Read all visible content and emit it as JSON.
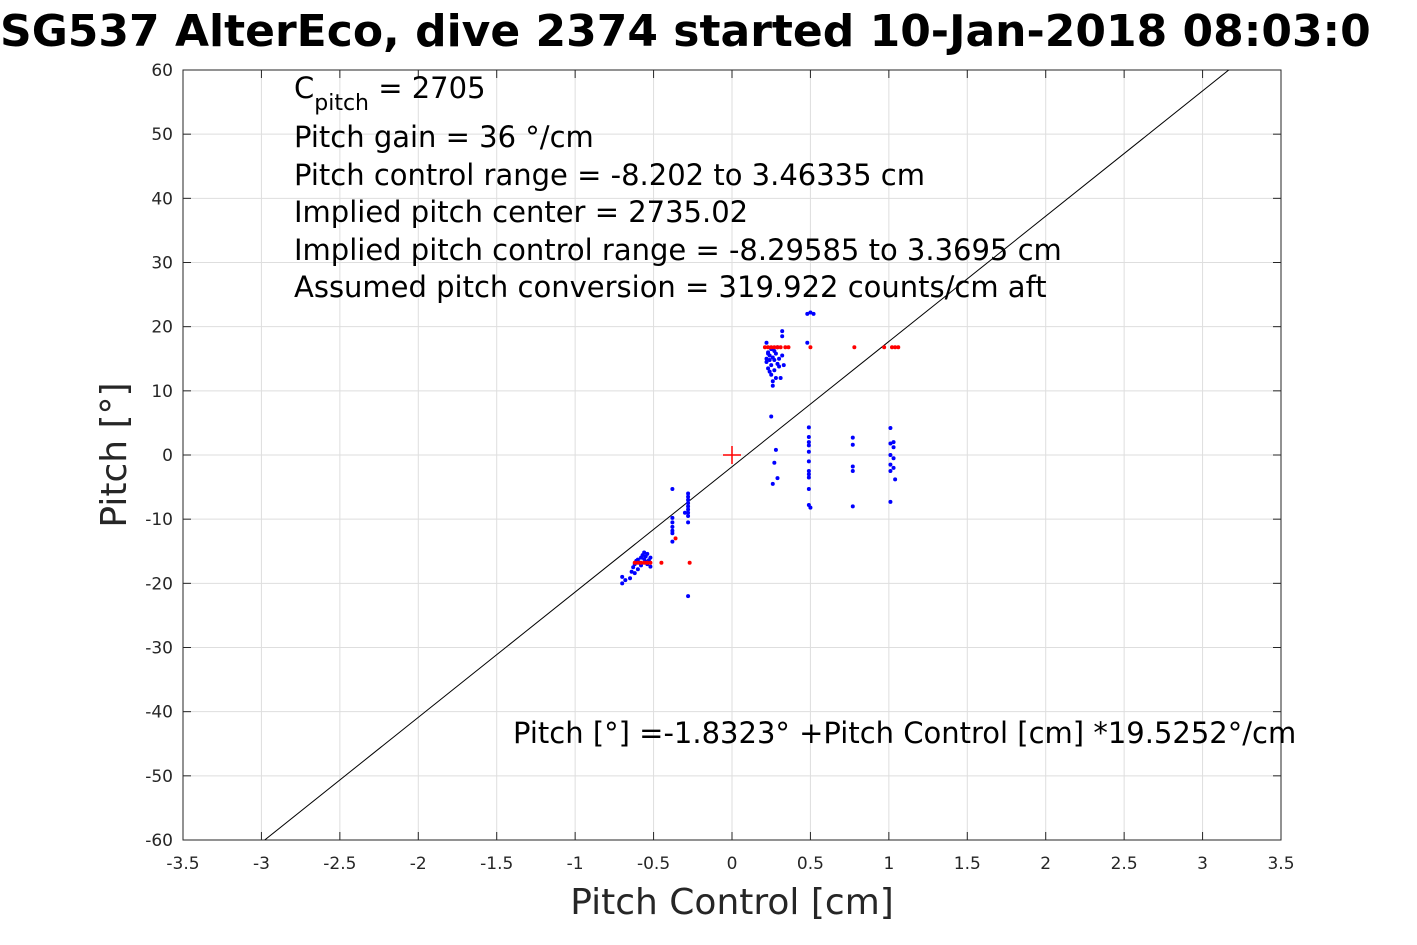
{
  "chart_data": {
    "type": "scatter",
    "title": "SG537 AlterEco, dive 2374 started 10-Jan-2018 08:03:0",
    "xlabel": "Pitch Control [cm]",
    "ylabel": "Pitch [°]",
    "xlim": [
      -3.5,
      3.5
    ],
    "ylim": [
      -60,
      60
    ],
    "x_ticks": [
      -3.5,
      -3,
      -2.5,
      -2,
      -1.5,
      -1,
      -0.5,
      0,
      0.5,
      1,
      1.5,
      2,
      2.5,
      3,
      3.5
    ],
    "x_tick_labels": [
      "-3.5",
      "-3",
      "-2.5",
      "-2",
      "-1.5",
      "-1",
      "-0.5",
      "0",
      "0.5",
      "1",
      "1.5",
      "2",
      "2.5",
      "3",
      "3.5"
    ],
    "y_ticks": [
      -60,
      -50,
      -40,
      -30,
      -20,
      -10,
      0,
      10,
      20,
      30,
      40,
      50,
      60
    ],
    "y_tick_labels": [
      "-60",
      "-50",
      "-40",
      "-30",
      "-20",
      "-10",
      "0",
      "10",
      "20",
      "30",
      "40",
      "50",
      "60"
    ],
    "grid": true,
    "colors": {
      "measured": "#0000ff",
      "commanded": "#ff0000",
      "fit": "#000000",
      "center": "#ff0000",
      "grid": "#dedede"
    },
    "annotations": {
      "c_pitch_prefix": "C",
      "c_pitch_sub": "pitch",
      "c_pitch_value": " = 2705",
      "line2": "Pitch gain = 36 °/cm",
      "line3": "Pitch control range = -8.202 to 3.46335 cm",
      "line4": "Implied pitch center = 2735.02",
      "line5": "Implied pitch control range = -8.29585 to 3.3695 cm",
      "line6": "Assumed pitch conversion = 319.922 counts/cm aft",
      "fit_equation": "Pitch [°] =-1.8323° +Pitch Control [cm] *19.5252°/cm"
    },
    "fit": {
      "intercept": -1.8323,
      "slope": 19.5252
    },
    "center_marker": {
      "x": 0,
      "y": 0
    },
    "series": [
      {
        "marker": "dot",
        "color": "#0000ff",
        "points": [
          [
            -0.7,
            -19.0
          ],
          [
            -0.7,
            -20.0
          ],
          [
            -0.68,
            -19.5
          ],
          [
            -0.65,
            -19.2
          ],
          [
            -0.64,
            -18.2
          ],
          [
            -0.63,
            -17.5
          ],
          [
            -0.62,
            -17.0
          ],
          [
            -0.61,
            -16.5
          ],
          [
            -0.6,
            -16.3
          ],
          [
            -0.59,
            -16.8
          ],
          [
            -0.58,
            -17.2
          ],
          [
            -0.58,
            -16.0
          ],
          [
            -0.57,
            -15.6
          ],
          [
            -0.56,
            -16.2
          ],
          [
            -0.56,
            -15.2
          ],
          [
            -0.55,
            -16.6
          ],
          [
            -0.55,
            -15.8
          ],
          [
            -0.54,
            -17.0
          ],
          [
            -0.54,
            -15.4
          ],
          [
            -0.53,
            -16.4
          ],
          [
            -0.52,
            -16.0
          ],
          [
            -0.52,
            -17.4
          ],
          [
            -0.6,
            -17.8
          ],
          [
            -0.62,
            -18.4
          ],
          [
            -0.38,
            -5.3
          ],
          [
            -0.38,
            -9.8
          ],
          [
            -0.38,
            -10.5
          ],
          [
            -0.38,
            -11.2
          ],
          [
            -0.38,
            -11.8
          ],
          [
            -0.38,
            -13.5
          ],
          [
            -0.38,
            -12.2
          ],
          [
            -0.28,
            -6.0
          ],
          [
            -0.28,
            -6.5
          ],
          [
            -0.28,
            -7.0
          ],
          [
            -0.28,
            -7.5
          ],
          [
            -0.28,
            -8.0
          ],
          [
            -0.28,
            -8.5
          ],
          [
            -0.28,
            -9.0
          ],
          [
            -0.28,
            -9.5
          ],
          [
            -0.28,
            -10.5
          ],
          [
            -0.3,
            -9.0
          ],
          [
            -0.28,
            -22.0
          ],
          [
            0.22,
            17.5
          ],
          [
            0.22,
            15.0
          ],
          [
            0.22,
            14.5
          ],
          [
            0.23,
            16.0
          ],
          [
            0.23,
            13.5
          ],
          [
            0.24,
            15.5
          ],
          [
            0.24,
            13.0
          ],
          [
            0.25,
            16.5
          ],
          [
            0.25,
            14.0
          ],
          [
            0.25,
            12.5
          ],
          [
            0.26,
            15.2
          ],
          [
            0.26,
            11.5
          ],
          [
            0.26,
            10.8
          ],
          [
            0.27,
            14.8
          ],
          [
            0.27,
            16.2
          ],
          [
            0.27,
            13.2
          ],
          [
            0.28,
            15.8
          ],
          [
            0.28,
            12.0
          ],
          [
            0.29,
            14.2
          ],
          [
            0.29,
            16.8
          ],
          [
            0.3,
            15.0
          ],
          [
            0.3,
            13.8
          ],
          [
            0.31,
            12.0
          ],
          [
            0.32,
            18.5
          ],
          [
            0.32,
            19.3
          ],
          [
            0.32,
            15.5
          ],
          [
            0.33,
            14.0
          ],
          [
            0.23,
            15.8
          ],
          [
            0.24,
            14.8
          ],
          [
            0.26,
            16.6
          ],
          [
            0.25,
            6.0
          ],
          [
            0.28,
            0.8
          ],
          [
            0.27,
            -1.2
          ],
          [
            0.29,
            -3.6
          ],
          [
            0.26,
            -4.5
          ],
          [
            0.48,
            22.0
          ],
          [
            0.5,
            22.2
          ],
          [
            0.52,
            22.0
          ],
          [
            0.48,
            17.5
          ],
          [
            0.49,
            4.3
          ],
          [
            0.49,
            2.8
          ],
          [
            0.49,
            2.0
          ],
          [
            0.49,
            1.5
          ],
          [
            0.49,
            0.5
          ],
          [
            0.49,
            -1.0
          ],
          [
            0.49,
            -2.5
          ],
          [
            0.49,
            -3.0
          ],
          [
            0.49,
            -3.5
          ],
          [
            0.49,
            -5.3
          ],
          [
            0.49,
            -7.8
          ],
          [
            0.5,
            -8.2
          ],
          [
            0.77,
            2.7
          ],
          [
            0.77,
            1.6
          ],
          [
            0.77,
            -1.8
          ],
          [
            0.77,
            -2.5
          ],
          [
            0.77,
            -8.0
          ],
          [
            1.01,
            4.2
          ],
          [
            1.01,
            1.8
          ],
          [
            1.01,
            0.0
          ],
          [
            1.01,
            -1.5
          ],
          [
            1.01,
            -2.5
          ],
          [
            1.01,
            -7.3
          ],
          [
            1.03,
            2.0
          ],
          [
            1.03,
            1.2
          ],
          [
            1.03,
            -0.5
          ],
          [
            1.03,
            -2.0
          ],
          [
            1.04,
            -3.8
          ]
        ]
      },
      {
        "marker": "dot",
        "color": "#ff0000",
        "points": [
          [
            -0.62,
            -16.8
          ],
          [
            -0.6,
            -16.8
          ],
          [
            -0.58,
            -16.8
          ],
          [
            -0.56,
            -16.8
          ],
          [
            -0.54,
            -16.8
          ],
          [
            -0.52,
            -16.8
          ],
          [
            -0.45,
            -16.8
          ],
          [
            -0.36,
            -13.0
          ],
          [
            -0.27,
            -16.8
          ],
          [
            0.21,
            16.8
          ],
          [
            0.23,
            16.8
          ],
          [
            0.25,
            16.8
          ],
          [
            0.27,
            16.8
          ],
          [
            0.29,
            16.8
          ],
          [
            0.31,
            16.8
          ],
          [
            0.34,
            16.8
          ],
          [
            0.36,
            16.8
          ],
          [
            0.5,
            16.8
          ],
          [
            0.78,
            16.8
          ],
          [
            0.97,
            16.8
          ],
          [
            1.02,
            16.8
          ],
          [
            1.04,
            16.8
          ],
          [
            1.06,
            16.8
          ]
        ]
      }
    ]
  }
}
